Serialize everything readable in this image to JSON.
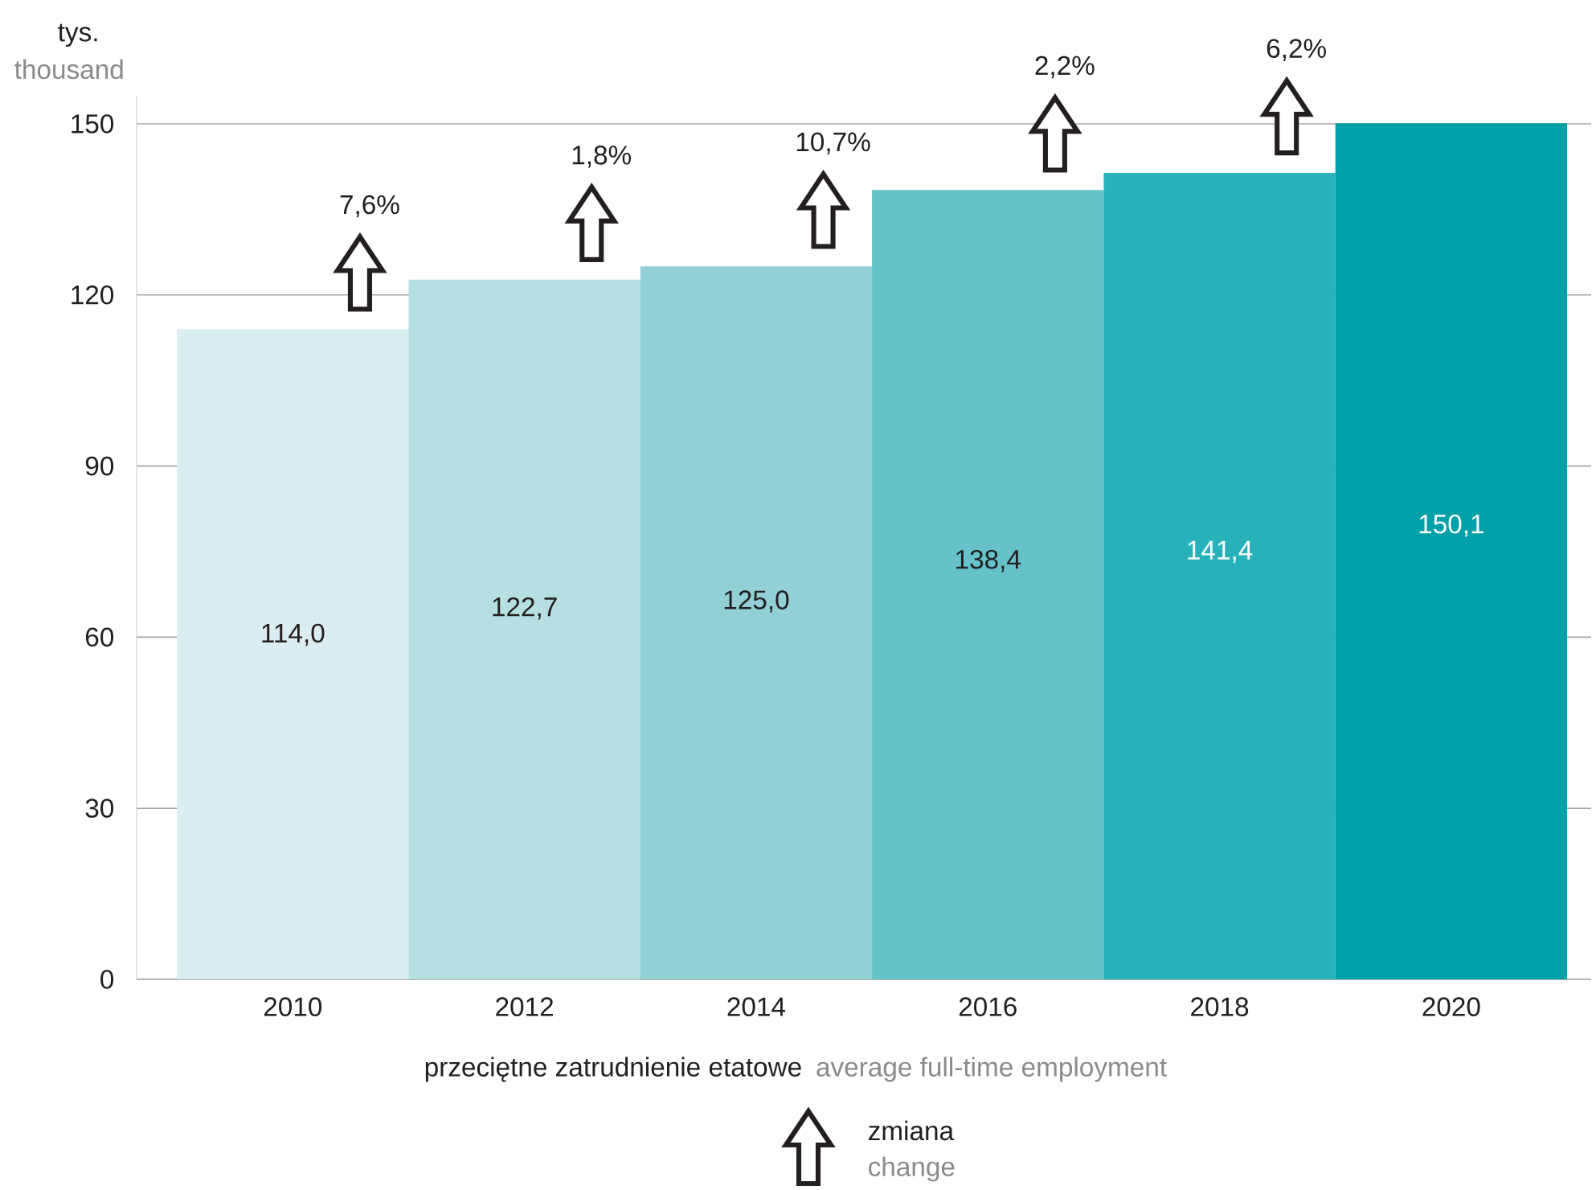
{
  "chart_data": {
    "type": "bar",
    "categories": [
      "2010",
      "2012",
      "2014",
      "2016",
      "2018",
      "2020"
    ],
    "values": [
      114.0,
      122.7,
      125.0,
      138.4,
      141.4,
      150.1
    ],
    "colors": [
      "#daedf0",
      "#b5dfe1",
      "#92d0d6",
      "#66c2c9",
      "#27b2bb",
      "#00a0a8"
    ],
    "value_labels": [
      "114,0",
      "122,7",
      "125,0",
      "138,4",
      "141,4",
      "150,1"
    ],
    "ylim": [
      0,
      155
    ],
    "yticks": [
      0,
      30,
      60,
      90,
      120,
      150
    ],
    "grid": "y",
    "xlabel": "przeciętne zatrudnienie etatowe",
    "ylabel": "tys.",
    "annotations": [
      "thousand",
      "average full-time employment",
      "zmiana",
      "change",
      "7,6%",
      "1,8%",
      "10,7%",
      "2,2%",
      "6,2%"
    ]
  }
}
